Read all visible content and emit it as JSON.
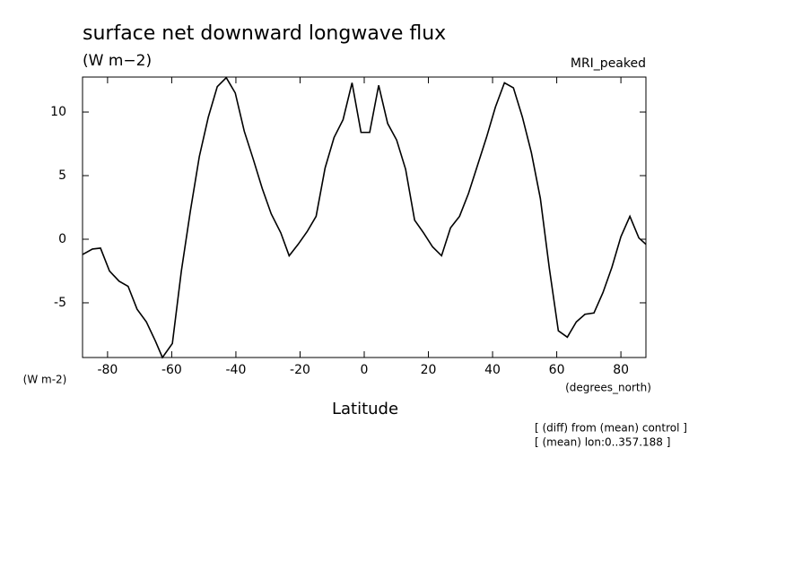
{
  "chart_data": {
    "type": "line",
    "title": "surface net downward longwave flux",
    "units": "(W m−2)",
    "model": "MRI_peaked",
    "y_axis_label": "(W m-2)",
    "x_axis_units": "(degrees_north)",
    "x_axis_label": "Latitude",
    "notes": [
      "[ (diff) from (mean) control ]",
      "[ (mean) lon:0..357.188 ]"
    ],
    "x": [
      -87.8,
      -84.7,
      -82.2,
      -79.4,
      -76.4,
      -73.6,
      -70.8,
      -67.9,
      -65.1,
      -62.9,
      -59.8,
      -57.0,
      -54.2,
      -51.4,
      -48.6,
      -45.8,
      -43.0,
      -40.2,
      -37.4,
      -34.6,
      -31.8,
      -29.0,
      -26.0,
      -23.4,
      -20.6,
      -17.8,
      -15.0,
      -12.2,
      -9.4,
      -6.6,
      -3.8,
      -1.0,
      1.7,
      4.5,
      7.3,
      10.1,
      12.9,
      15.7,
      18.5,
      21.3,
      24.1,
      26.9,
      29.7,
      32.5,
      35.3,
      38.1,
      40.9,
      43.7,
      46.5,
      49.3,
      52.1,
      54.9,
      57.7,
      60.5,
      63.3,
      66.1,
      68.8,
      71.6,
      74.4,
      77.2,
      80.0,
      82.8,
      85.6,
      87.8
    ],
    "series": [
      {
        "color": "#000000",
        "values": [
          -1.2,
          -0.77,
          -0.7,
          -2.5,
          -3.3,
          -3.7,
          -5.5,
          -6.5,
          -8.0,
          -9.3,
          -8.2,
          -2.5,
          2.2,
          6.5,
          9.6,
          12.0,
          12.7,
          11.5,
          8.5,
          6.3,
          4.0,
          2.0,
          0.5,
          -1.3,
          -0.4,
          0.6,
          1.8,
          5.6,
          8.0,
          9.4,
          12.3,
          8.4,
          8.4,
          12.1,
          9.1,
          7.8,
          5.5,
          1.5,
          0.5,
          -0.6,
          -1.3,
          0.9,
          1.8,
          3.6,
          5.8,
          8.0,
          10.4,
          12.3,
          11.9,
          9.6,
          6.8,
          3.2,
          -2.3,
          -7.2,
          -7.7,
          -6.5,
          -5.9,
          -5.8,
          -4.2,
          -2.2,
          0.2,
          1.8,
          0.1,
          -0.4
        ]
      }
    ],
    "xlim": [
      -87.8,
      87.8
    ],
    "ylim": [
      -9.3,
      12.75
    ],
    "xticks": [
      -80,
      -60,
      -40,
      -20,
      0,
      20,
      40,
      60,
      80
    ],
    "yticks": [
      -5,
      0,
      5,
      10
    ]
  }
}
